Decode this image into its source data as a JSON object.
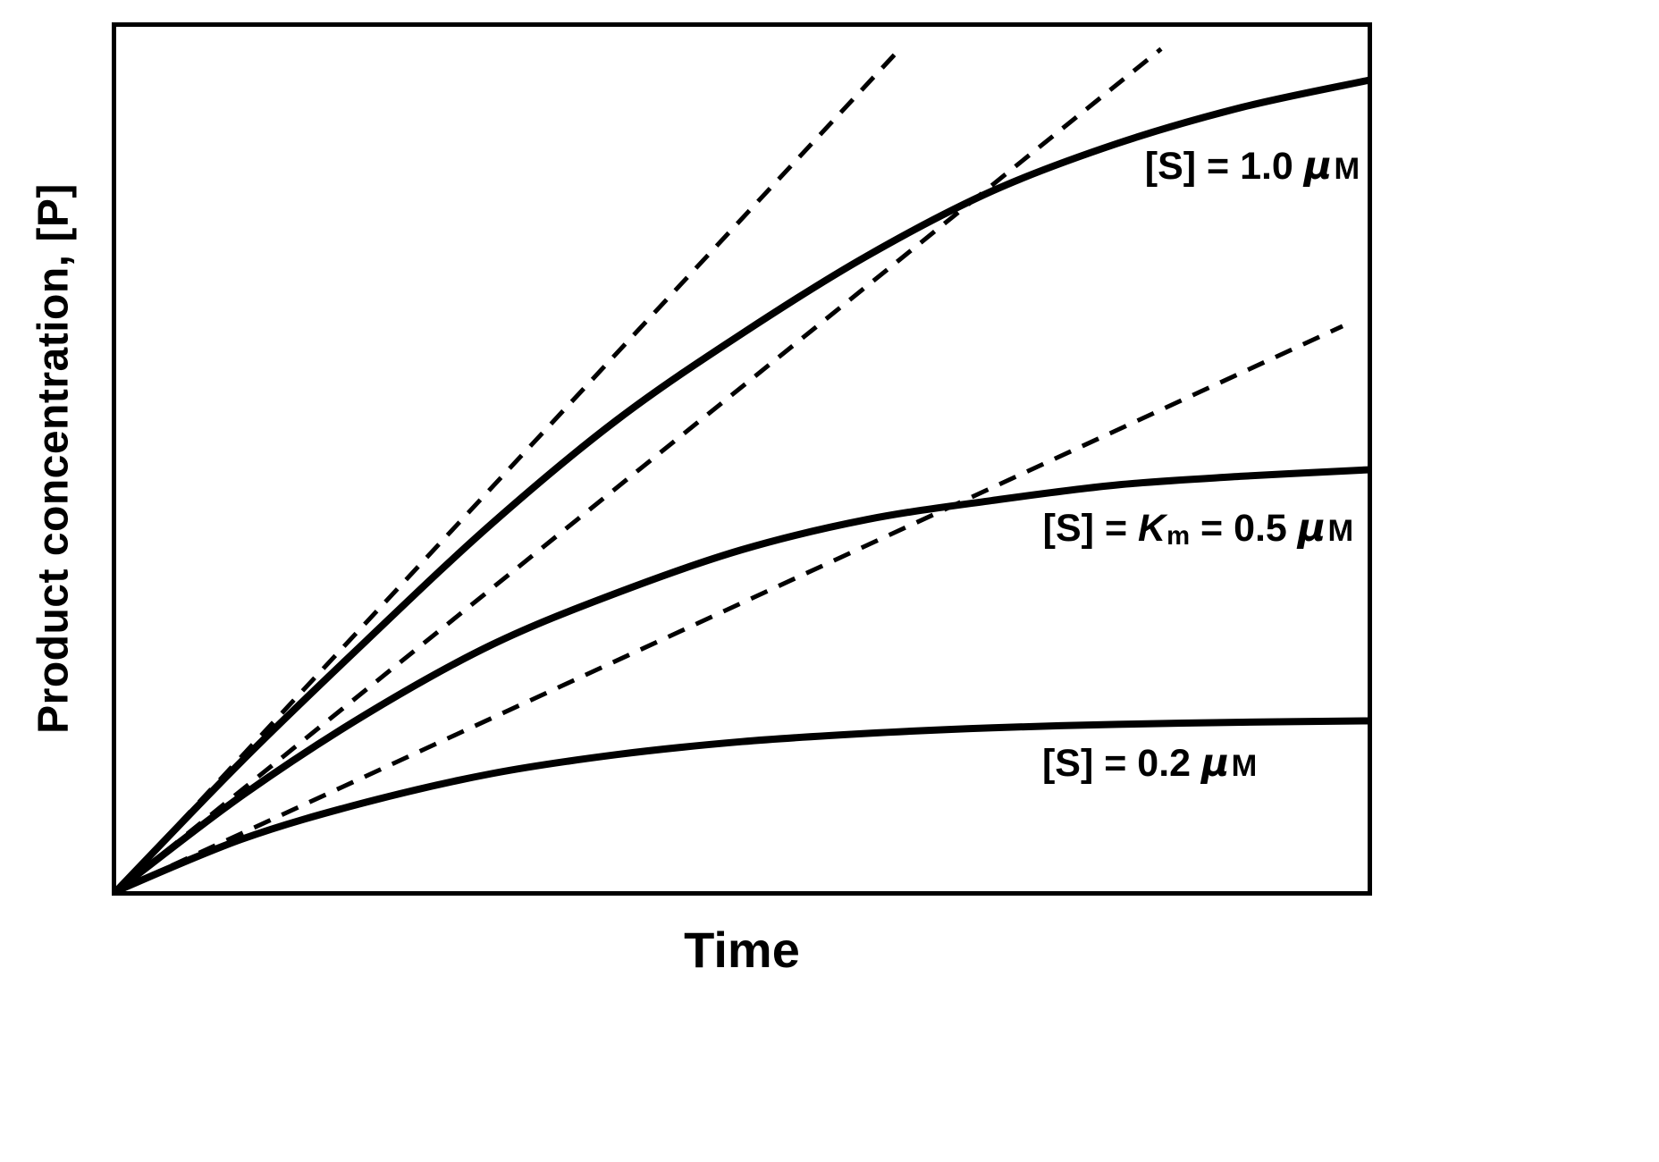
{
  "figure": {
    "background": "#ffffff",
    "ink_color": "#000000",
    "x_axis_label": "Time",
    "y_axis_label": "Product concentration, [P]"
  },
  "chart_data": {
    "type": "line",
    "title": "",
    "xlabel": "Time",
    "ylabel": "Product concentration, [P]",
    "x_range": [
      0,
      1
    ],
    "y_range": [
      0,
      1
    ],
    "grid": false,
    "tick_labels": "none",
    "legend_position": "inline-right-of-curves",
    "description": "Enzyme progress curves of product concentration vs time at three substrate concentrations, each with a dashed initial-rate tangent line from the origin. Axes are unlabeled numerically; values are normalized to the plot box.",
    "x": [
      0,
      0.1,
      0.2,
      0.3,
      0.4,
      0.5,
      0.6,
      0.7,
      0.8,
      0.9,
      1.0
    ],
    "series": [
      {
        "name": "[S] = 1.0 μM",
        "substrate_concentration_uM": 1.0,
        "line_style": "solid",
        "values": [
          0,
          0.15,
          0.29,
          0.425,
          0.545,
          0.645,
          0.735,
          0.81,
          0.865,
          0.907,
          0.938
        ],
        "label_segments": [
          {
            "text": "[S] = 1.0 ",
            "style": "plain"
          },
          {
            "text": "μ",
            "style": "mu"
          },
          {
            "text": "M",
            "style": "unit"
          }
        ],
        "label_pos": {
          "right": 0.006,
          "top": 0.135
        }
      },
      {
        "name": "[S] = Km = 0.5 μM",
        "substrate_concentration_uM": 0.5,
        "line_style": "solid",
        "values": [
          0,
          0.11,
          0.205,
          0.285,
          0.345,
          0.395,
          0.43,
          0.452,
          0.47,
          0.48,
          0.4875
        ],
        "label_segments": [
          {
            "text": "[S] = ",
            "style": "plain"
          },
          {
            "text": "K",
            "style": "italic"
          },
          {
            "text": "m",
            "style": "sub"
          },
          {
            "text": " = 0.5 ",
            "style": "plain"
          },
          {
            "text": "μ",
            "style": "mu"
          },
          {
            "text": "M",
            "style": "unit"
          }
        ],
        "label_pos": {
          "right": 0.011,
          "top": 0.554
        }
      },
      {
        "name": "[S] = 0.2 μM",
        "substrate_concentration_uM": 0.2,
        "line_style": "solid",
        "values": [
          0,
          0.06,
          0.103,
          0.136,
          0.158,
          0.173,
          0.1825,
          0.189,
          0.193,
          0.1955,
          0.197
        ],
        "label_segments": [
          {
            "text": "[S] = 0.2 ",
            "style": "plain"
          },
          {
            "text": "μ",
            "style": "mu"
          },
          {
            "text": "M",
            "style": "unit"
          }
        ],
        "label_pos": {
          "right": 0.088,
          "top": 0.826
        }
      }
    ],
    "tangent_lines": [
      {
        "name": "initial-rate-tangent-1-0-uM",
        "slope": 1.556,
        "x_end": 0.623,
        "line_style": "dashed"
      },
      {
        "name": "initial-rate-tangent-0-5-uM",
        "slope": 1.167,
        "x_end": 0.835,
        "line_style": "dashed"
      },
      {
        "name": "initial-rate-tangent-0-2-uM",
        "slope": 0.667,
        "x_end": 0.98,
        "line_style": "dashed"
      }
    ]
  }
}
